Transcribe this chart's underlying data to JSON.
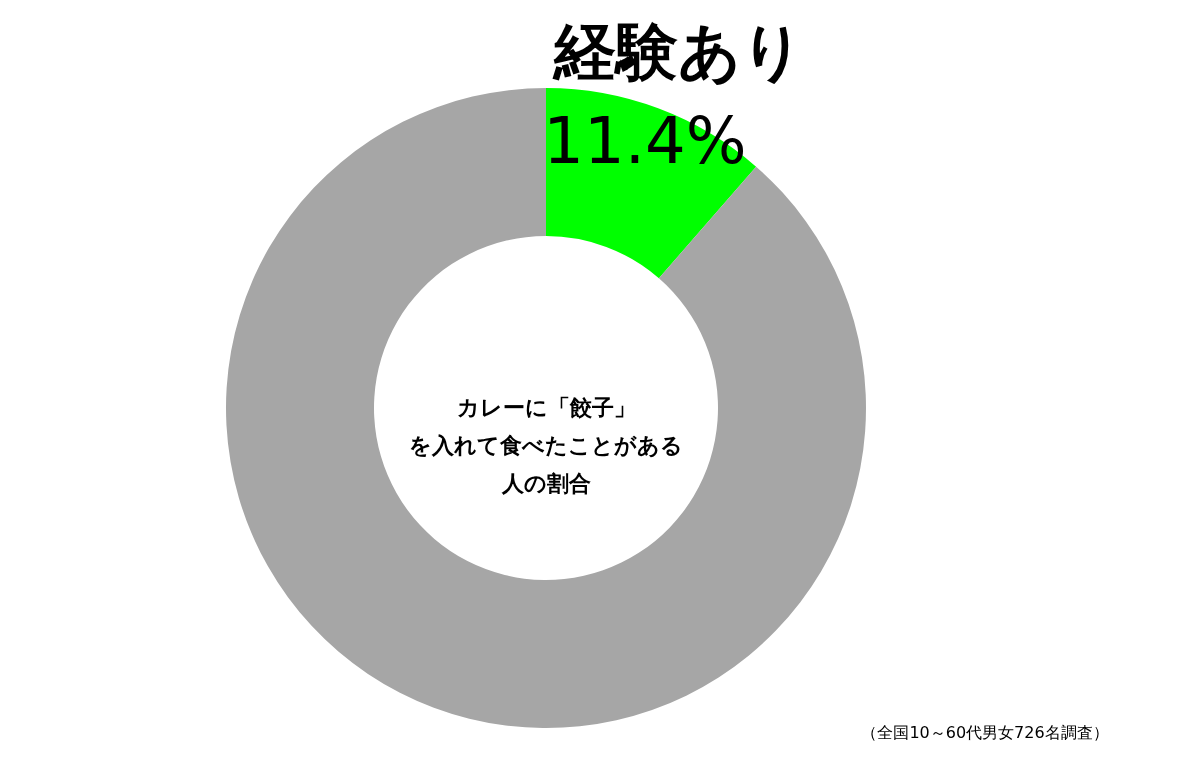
{
  "chart_data": {
    "type": "donut",
    "title": "カレーに「餃子」を入れて食べたことがある人の割合",
    "categories": [
      "経験あり",
      null
    ],
    "values": [
      11.4,
      88.6
    ],
    "colors": [
      "#00ff00",
      "#a6a6a6"
    ],
    "value_labels": [
      "11.4%",
      null
    ],
    "annotations": [
      "（全国10～60代男女726名調査）"
    ]
  }
}
